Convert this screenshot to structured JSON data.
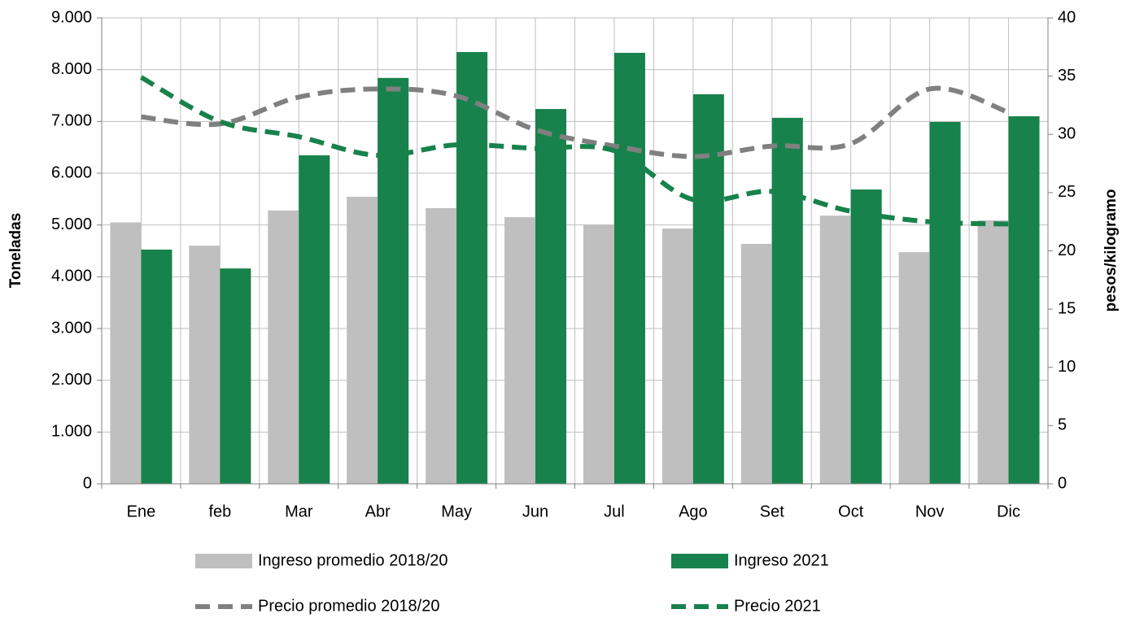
{
  "chart_data": {
    "type": "bar_line",
    "categories": [
      "Ene",
      "feb",
      "Mar",
      "Abr",
      "May",
      "Jun",
      "Jul",
      "Ago",
      "Set",
      "Oct",
      "Nov",
      "Dic"
    ],
    "y_label": "Toneladas",
    "y2_label": "pesos/kilogramo",
    "ylim": [
      0,
      9000
    ],
    "yticks": [
      {
        "value": 0,
        "label": "0"
      },
      {
        "value": 1000,
        "label": "1.000"
      },
      {
        "value": 2000,
        "label": "2.000"
      },
      {
        "value": 3000,
        "label": "3.000"
      },
      {
        "value": 4000,
        "label": "4.000"
      },
      {
        "value": 5000,
        "label": "5.000"
      },
      {
        "value": 6000,
        "label": "6.000"
      },
      {
        "value": 7000,
        "label": "7.000"
      },
      {
        "value": 8000,
        "label": "8.000"
      },
      {
        "value": 9000,
        "label": "9.000"
      }
    ],
    "y2lim": [
      0,
      40
    ],
    "y2ticks": [
      0,
      5,
      10,
      15,
      20,
      25,
      30,
      35,
      40
    ],
    "grid": true,
    "series": [
      {
        "name": "Ingreso promedio 2018/20",
        "type": "bar",
        "color": "#bfbfbf",
        "values": [
          5050,
          4600,
          5280,
          5545,
          5325,
          5150,
          5010,
          4930,
          4635,
          5180,
          4475,
          5090
        ]
      },
      {
        "name": "Ingreso 2021",
        "type": "bar",
        "color": "#17824b",
        "values": [
          4525,
          4160,
          6345,
          7840,
          8340,
          7240,
          8325,
          7525,
          7070,
          5685,
          6990,
          7100
        ]
      },
      {
        "name": "Precio promedio 2018/20",
        "type": "line",
        "axis": "y2",
        "dashed": true,
        "color": "#808080",
        "values": [
          31.5,
          30.9,
          33.2,
          33.9,
          33.3,
          30.4,
          29.0,
          28.1,
          29.0,
          29.2,
          33.9,
          31.9
        ]
      },
      {
        "name": "Precio 2021",
        "type": "line",
        "axis": "y2",
        "dashed": true,
        "color": "#17824b",
        "values": [
          34.9,
          31.1,
          29.8,
          28.2,
          29.1,
          28.8,
          28.6,
          24.4,
          25.1,
          23.4,
          22.5,
          22.3
        ]
      }
    ]
  }
}
